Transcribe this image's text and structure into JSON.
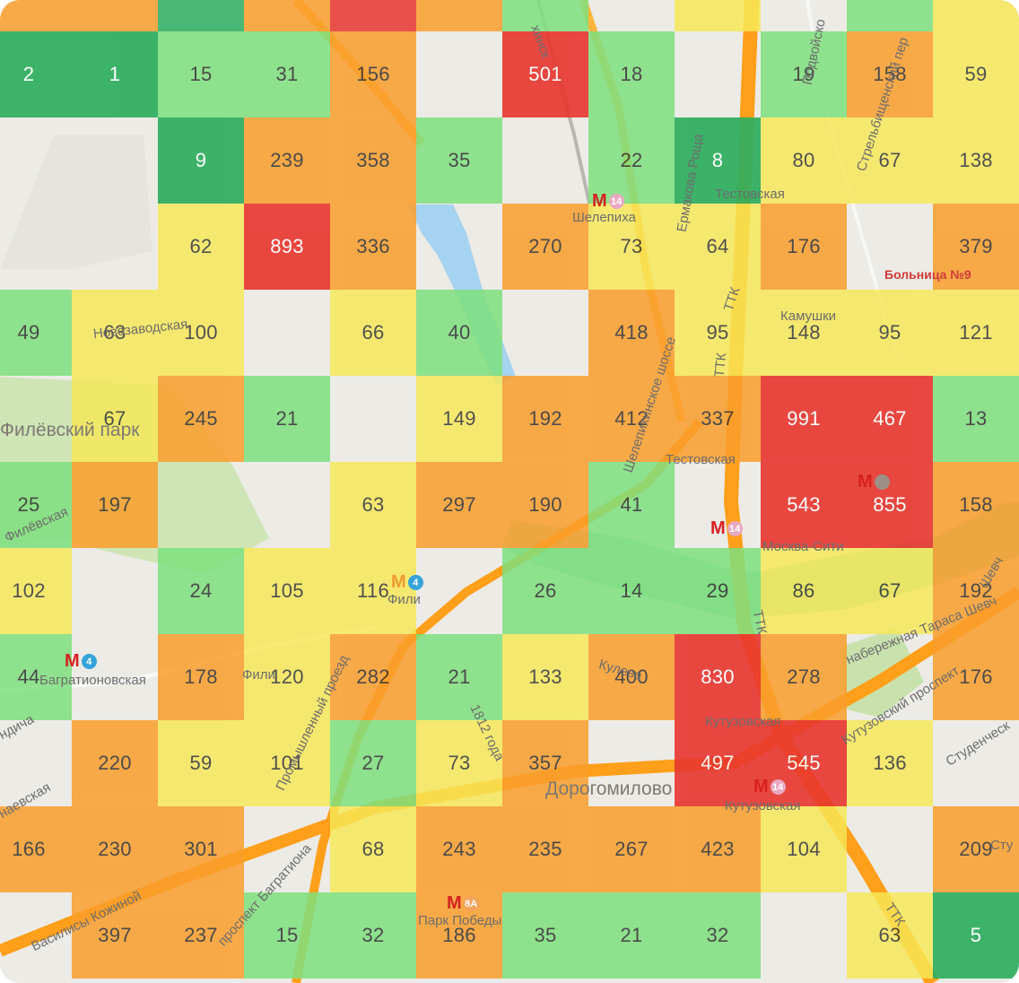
{
  "colors": {
    "level_1": "#2eae5f",
    "level_2": "#7ee07e",
    "level_3": "#f7e856",
    "level_4": "#fa9e2c",
    "level_5": "#e8362f",
    "background": "#ecebe6",
    "water": "#a6d3ef",
    "park": "#cfe5b5",
    "road": "#ff9f1a"
  },
  "heatmap": {
    "rows": [
      [
        "2",
        "1",
        "15",
        "31",
        "156",
        "",
        "501",
        "18",
        "",
        "19",
        "158",
        "59"
      ],
      [
        "",
        "",
        "9",
        "239",
        "358",
        "35",
        "",
        "22",
        "8",
        "80",
        "67",
        "138"
      ],
      [
        "",
        "",
        "62",
        "893",
        "336",
        "",
        "270",
        "73",
        "64",
        "176",
        "",
        "379"
      ],
      [
        "49",
        "63",
        "100",
        "",
        "66",
        "40",
        "",
        "418",
        "95",
        "148",
        "95",
        "121"
      ],
      [
        "",
        "67",
        "245",
        "21",
        "",
        "149",
        "192",
        "412",
        "337",
        "991",
        "467",
        "13"
      ],
      [
        "25",
        "197",
        "",
        "",
        "63",
        "297",
        "190",
        "41",
        "",
        "543",
        "855",
        "158"
      ],
      [
        "102",
        "",
        "24",
        "105",
        "116",
        "",
        "26",
        "14",
        "29",
        "86",
        "67",
        "192"
      ],
      [
        "44",
        "",
        "178",
        "120",
        "282",
        "21",
        "133",
        "400",
        "830",
        "278",
        "",
        "176"
      ],
      [
        "",
        "220",
        "59",
        "101",
        "27",
        "73",
        "357",
        "",
        "497",
        "545",
        "136",
        ""
      ],
      [
        "166",
        "230",
        "301",
        "",
        "68",
        "243",
        "235",
        "267",
        "423",
        "104",
        "",
        "209"
      ],
      [
        "",
        "397",
        "237",
        "15",
        "32",
        "186",
        "35",
        "21",
        "32",
        "",
        "63",
        "5"
      ]
    ]
  },
  "map_labels": {
    "shelepikha": "Шелепиха",
    "testovskaya": "Тестовская",
    "testovskaya_d4": "Тестовская",
    "hospital": "Больница №9",
    "kamushki": "Камушки",
    "novozavodskaya": "Новозаводская",
    "filevsky_park": "Филёвский парк",
    "filevskaya": "Филёвская",
    "moscow_city": "Москва-Сити",
    "fili": "Фили",
    "fili_d1": "Фили",
    "bagrationovskaya": "Багратионовская",
    "kutuzovskaya": "Кутузовская",
    "kutuzovskaya_metro": "Кутузовская",
    "kuleva": "Кулева",
    "dorogomilovo": "Дорогомилово",
    "park_pobedy": "Парк Победы",
    "naberezhnaya": "набережная Тараса Шевч",
    "kutuzovsky_prospekt": "Кутузовский проспект",
    "studencheskaya": "Студенческ",
    "prospekt_bagrationa": "проспект Багратиона",
    "vasilisy_kozhinoy": "Василисы Кожиной",
    "promyshlenny": "Промышленный проезд",
    "goda_1812": "1812 года",
    "shelepikhinskoe": "Шелепихинское шоссе",
    "ermakova_roshcha": "Ермакова Роща",
    "ttk": "ТТК",
    "ttk2": "ТТК",
    "ttk3": "ТТК",
    "ttk4": "ТТК",
    "podvoyskogo": "Подвойско",
    "strelbishchensky": "Стрельбищенский пер",
    "naevskaya": "наевская",
    "ndicha": "ндича",
    "sty": "Сту",
    "shevcha": "Шевч",
    "shelepikhinskoe_top": "хинск"
  },
  "metro_stations": [
    {
      "key": "shelepikha",
      "line": "14",
      "line_color": "#e9a8c2"
    },
    {
      "key": "testovskaya",
      "line": "",
      "line_color": ""
    },
    {
      "key": "moscow_city",
      "line": "14",
      "line_color": "#e9a8c2"
    },
    {
      "key": "fili",
      "line": "4",
      "line_color": "#35a3dc"
    },
    {
      "key": "bagrationovskaya",
      "line": "4",
      "line_color": "#35a3dc"
    },
    {
      "key": "kutuzovskaya",
      "line": "14",
      "line_color": "#e9a8c2"
    },
    {
      "key": "park_pobedy",
      "line": "8А",
      "line_color": "#f3a35a"
    },
    {
      "key": "delovoy",
      "line": "",
      "line_color": ""
    }
  ]
}
